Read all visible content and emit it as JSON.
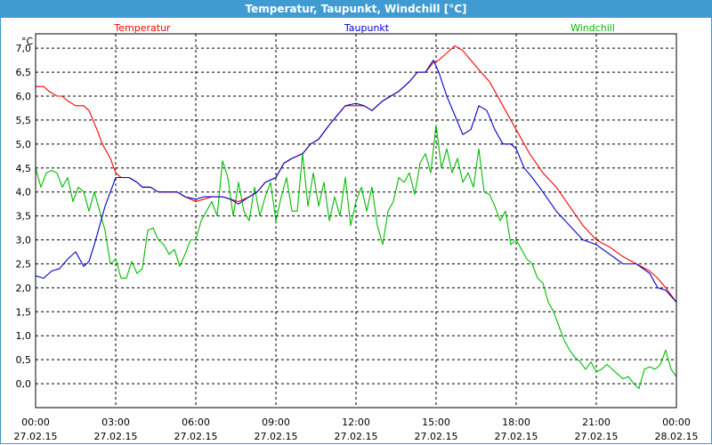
{
  "window": {
    "title": "Temperatur, Taupunkt, Windchill [°C]"
  },
  "chart_data": {
    "type": "line",
    "title": "Temperatur, Taupunkt, Windchill [°C]",
    "ylabel": "°C",
    "ylim": [
      -0.5,
      7.3
    ],
    "xlim": [
      0,
      24
    ],
    "grid": true,
    "legend_position": "top",
    "y_ticks": [
      "7,0",
      "6,5",
      "6,0",
      "5,5",
      "5,0",
      "4,5",
      "4,0",
      "3,5",
      "3,0",
      "2,5",
      "2,0",
      "1,5",
      "1,0",
      "0,5",
      "0,0"
    ],
    "y_tick_values": [
      7.0,
      6.5,
      6.0,
      5.5,
      5.0,
      4.5,
      4.0,
      3.5,
      3.0,
      2.5,
      2.0,
      1.5,
      1.0,
      0.5,
      0.0
    ],
    "x_ticks": [
      {
        "h": 0,
        "time": "00:00",
        "date": "27.02.15"
      },
      {
        "h": 3,
        "time": "03:00",
        "date": "27.02.15"
      },
      {
        "h": 6,
        "time": "06:00",
        "date": "27.02.15"
      },
      {
        "h": 9,
        "time": "09:00",
        "date": "27.02.15"
      },
      {
        "h": 12,
        "time": "12:00",
        "date": "27.02.15"
      },
      {
        "h": 15,
        "time": "15:00",
        "date": "27.02.15"
      },
      {
        "h": 18,
        "time": "18:00",
        "date": "27.02.15"
      },
      {
        "h": 21,
        "time": "21:00",
        "date": "27.02.15"
      },
      {
        "h": 24,
        "time": "00:00",
        "date": "28.02.15"
      }
    ],
    "series": [
      {
        "name": "Temperatur",
        "color": "#ff0000",
        "x": [
          0,
          0.3,
          0.5,
          0.8,
          1.0,
          1.2,
          1.5,
          1.8,
          2.0,
          2.3,
          2.5,
          2.8,
          3.0,
          3.2,
          3.5,
          3.8,
          4.0,
          4.3,
          4.6,
          5.0,
          5.3,
          5.6,
          6.0,
          6.3,
          6.6,
          7.0,
          7.3,
          7.6,
          8.0,
          8.3,
          8.6,
          9.0,
          9.3,
          9.6,
          10.0,
          10.3,
          10.6,
          11.0,
          11.3,
          11.6,
          12.0,
          12.3,
          12.6,
          13.0,
          13.3,
          13.6,
          14.0,
          14.3,
          14.6,
          14.9,
          15.1,
          15.4,
          15.7,
          16.0,
          16.3,
          16.6,
          17.0,
          17.3,
          17.6,
          18.0,
          18.5,
          19.0,
          19.5,
          20.0,
          20.5,
          21.0,
          21.5,
          22.0,
          22.5,
          23.0,
          23.3,
          23.6,
          24.0
        ],
        "y": [
          6.2,
          6.2,
          6.1,
          6.0,
          6.0,
          5.9,
          5.8,
          5.8,
          5.7,
          5.3,
          5.0,
          4.7,
          4.4,
          4.3,
          4.3,
          4.2,
          4.1,
          4.1,
          4.0,
          4.0,
          4.0,
          3.9,
          3.8,
          3.85,
          3.9,
          3.9,
          3.85,
          3.8,
          3.9,
          4.0,
          4.2,
          4.3,
          4.6,
          4.7,
          4.8,
          5.0,
          5.1,
          5.4,
          5.6,
          5.8,
          5.8,
          5.8,
          5.7,
          5.9,
          6.0,
          6.1,
          6.3,
          6.5,
          6.5,
          6.7,
          6.75,
          6.9,
          7.05,
          6.95,
          6.75,
          6.55,
          6.3,
          6.0,
          5.7,
          5.3,
          4.8,
          4.4,
          4.1,
          3.7,
          3.3,
          3.0,
          2.85,
          2.65,
          2.5,
          2.35,
          2.2,
          2.0,
          1.7
        ]
      },
      {
        "name": "Taupunkt",
        "color": "#0000cc",
        "x": [
          0,
          0.3,
          0.6,
          0.9,
          1.2,
          1.5,
          1.8,
          2.0,
          2.2,
          2.4,
          2.6,
          2.8,
          3.0,
          3.2,
          3.5,
          3.8,
          4.0,
          4.3,
          4.6,
          5.0,
          5.3,
          5.6,
          6.0,
          6.3,
          6.6,
          7.0,
          7.3,
          7.6,
          8.0,
          8.3,
          8.6,
          9.0,
          9.3,
          9.6,
          10.0,
          10.3,
          10.6,
          11.0,
          11.3,
          11.6,
          12.0,
          12.3,
          12.6,
          13.0,
          13.3,
          13.6,
          14.0,
          14.3,
          14.6,
          14.9,
          15.1,
          15.4,
          15.7,
          16.0,
          16.3,
          16.6,
          16.9,
          17.2,
          17.5,
          17.8,
          18.0,
          18.3,
          18.6,
          19.0,
          19.5,
          20.0,
          20.5,
          21.0,
          21.5,
          22.0,
          22.5,
          23.0,
          23.3,
          23.6,
          24.0
        ],
        "y": [
          2.25,
          2.2,
          2.35,
          2.4,
          2.6,
          2.75,
          2.45,
          2.55,
          2.9,
          3.3,
          3.7,
          4.0,
          4.3,
          4.3,
          4.3,
          4.2,
          4.1,
          4.1,
          4.0,
          4.0,
          4.0,
          3.9,
          3.85,
          3.9,
          3.9,
          3.9,
          3.85,
          3.75,
          3.9,
          4.0,
          4.2,
          4.3,
          4.6,
          4.7,
          4.8,
          5.0,
          5.1,
          5.4,
          5.6,
          5.8,
          5.85,
          5.8,
          5.7,
          5.9,
          6.0,
          6.1,
          6.3,
          6.5,
          6.5,
          6.75,
          6.5,
          6.0,
          5.6,
          5.2,
          5.3,
          5.8,
          5.7,
          5.3,
          5.0,
          5.0,
          4.9,
          4.5,
          4.3,
          4.0,
          3.6,
          3.3,
          3.0,
          2.9,
          2.7,
          2.5,
          2.5,
          2.3,
          2.0,
          1.95,
          1.7
        ]
      },
      {
        "name": "Windchill",
        "color": "#00bb00",
        "x": [
          0,
          0.2,
          0.4,
          0.6,
          0.8,
          1.0,
          1.2,
          1.4,
          1.6,
          1.8,
          2.0,
          2.2,
          2.4,
          2.6,
          2.8,
          3.0,
          3.2,
          3.4,
          3.6,
          3.8,
          4.0,
          4.2,
          4.4,
          4.6,
          4.8,
          5.0,
          5.2,
          5.4,
          5.6,
          5.8,
          6.0,
          6.2,
          6.4,
          6.6,
          6.8,
          7.0,
          7.2,
          7.4,
          7.6,
          7.8,
          8.0,
          8.2,
          8.4,
          8.6,
          8.8,
          9.0,
          9.2,
          9.4,
          9.6,
          9.8,
          10.0,
          10.2,
          10.4,
          10.6,
          10.8,
          11.0,
          11.2,
          11.4,
          11.6,
          11.8,
          12.0,
          12.2,
          12.4,
          12.6,
          12.8,
          13.0,
          13.2,
          13.4,
          13.6,
          13.8,
          14.0,
          14.2,
          14.4,
          14.6,
          14.8,
          15.0,
          15.2,
          15.4,
          15.6,
          15.8,
          16.0,
          16.2,
          16.4,
          16.6,
          16.8,
          17.0,
          17.2,
          17.4,
          17.6,
          17.8,
          18.0,
          18.2,
          18.4,
          18.6,
          18.8,
          19.0,
          19.2,
          19.4,
          19.6,
          19.8,
          20.0,
          20.2,
          20.4,
          20.6,
          20.8,
          21.0,
          21.2,
          21.4,
          21.6,
          21.8,
          22.0,
          22.2,
          22.4,
          22.6,
          22.8,
          23.0,
          23.2,
          23.4,
          23.6,
          23.8,
          24.0
        ],
        "y": [
          4.5,
          4.1,
          4.4,
          4.45,
          4.4,
          4.1,
          4.3,
          3.8,
          4.1,
          4.0,
          3.6,
          4.0,
          3.6,
          3.2,
          2.5,
          2.6,
          2.2,
          2.2,
          2.55,
          2.3,
          2.4,
          3.2,
          3.25,
          3.0,
          2.9,
          2.7,
          2.8,
          2.45,
          2.7,
          3.0,
          3.0,
          3.4,
          3.6,
          3.8,
          3.5,
          4.65,
          4.3,
          3.5,
          4.2,
          3.6,
          3.4,
          4.1,
          3.5,
          3.9,
          4.2,
          3.4,
          3.9,
          4.3,
          3.6,
          3.6,
          4.8,
          3.7,
          4.4,
          3.7,
          4.2,
          3.4,
          3.9,
          3.5,
          4.3,
          3.3,
          3.8,
          4.1,
          3.6,
          4.1,
          3.3,
          2.9,
          3.6,
          3.8,
          4.3,
          4.2,
          4.4,
          3.95,
          4.6,
          4.8,
          4.4,
          5.4,
          4.5,
          4.9,
          4.4,
          4.7,
          4.2,
          4.4,
          4.1,
          4.9,
          4.0,
          3.95,
          3.7,
          3.4,
          3.6,
          2.9,
          3.0,
          2.8,
          2.6,
          2.5,
          2.2,
          2.1,
          1.7,
          1.5,
          1.2,
          0.9,
          0.7,
          0.55,
          0.45,
          0.3,
          0.45,
          0.25,
          0.3,
          0.4,
          0.3,
          0.2,
          0.1,
          0.15,
          0.0,
          -0.1,
          0.3,
          0.35,
          0.3,
          0.4,
          0.7,
          0.3,
          0.15
        ]
      }
    ]
  }
}
